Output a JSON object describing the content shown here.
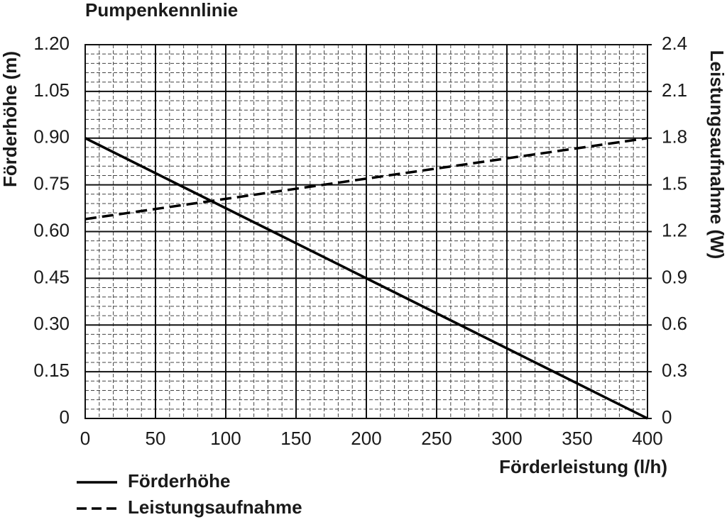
{
  "chart_data": {
    "type": "line",
    "title": "Pumpenkennlinie",
    "xlabel": "Förderleistung (l/h)",
    "ylabel": "Förderhöhe (m)",
    "y2label": "Leistungsaufnahme (W)",
    "x": [
      0,
      400
    ],
    "series": [
      {
        "name": "Förderhöhe",
        "color": "#000000",
        "style": "solid",
        "values": [
          0.9,
          0
        ]
      },
      {
        "name": "Leistungsaufnahme",
        "color": "#000000",
        "style": "dashed",
        "axis": "y2",
        "values": [
          1.28,
          1.8
        ]
      }
    ],
    "xlim": [
      0,
      400
    ],
    "xticks": [
      0,
      50,
      100,
      150,
      200,
      250,
      300,
      350,
      400
    ],
    "ylim": [
      0,
      1.2
    ],
    "yticks": [
      0,
      0.15,
      {
        "value": 0.3,
        "label": "0.30"
      },
      0.45,
      {
        "value": 0.6,
        "label": "0.60"
      },
      0.75,
      {
        "value": 0.9,
        "label": "0.90"
      },
      1.05,
      {
        "value": 1.2,
        "label": "1.20"
      }
    ],
    "y2lim": [
      0,
      2.4
    ],
    "y2ticks": [
      0,
      0.3,
      0.6,
      0.9,
      1.2,
      1.5,
      1.8,
      2.1,
      2.4
    ],
    "grid": true,
    "minor_grid": true,
    "legend": "bottom-left"
  }
}
